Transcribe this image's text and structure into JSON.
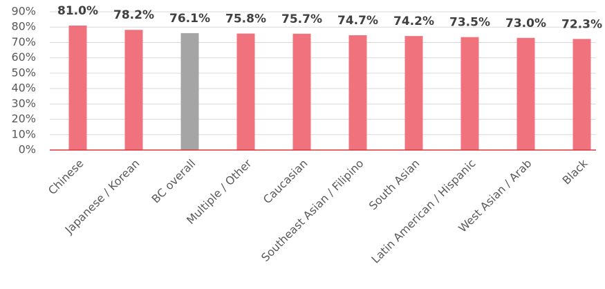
{
  "chart_data": {
    "type": "bar",
    "categories": [
      "Chinese",
      "Japanese / Korean",
      "BC overall",
      "Multiple / Other",
      "Caucasian",
      "Southeast Asian / Filipino",
      "South Asian",
      "Latin American / Hispanic",
      "West Asian / Arab",
      "Black"
    ],
    "values": [
      81.0,
      78.2,
      76.1,
      75.8,
      75.7,
      74.7,
      74.2,
      73.5,
      73.0,
      72.3
    ],
    "value_labels": [
      "81.0%",
      "78.2%",
      "76.1%",
      "75.8%",
      "75.7%",
      "74.7%",
      "74.2%",
      "73.5%",
      "73.0%",
      "72.3%"
    ],
    "colors": [
      "#f0727c",
      "#f0727c",
      "#a5a5a5",
      "#f0727c",
      "#f0727c",
      "#f0727c",
      "#f0727c",
      "#f0727c",
      "#f0727c",
      "#f0727c"
    ],
    "ylim": [
      0,
      90
    ],
    "yticks": [
      {
        "value": 0,
        "label": "0%"
      },
      {
        "value": 10,
        "label": "10%"
      },
      {
        "value": 20,
        "label": "20%"
      },
      {
        "value": 30,
        "label": "30%"
      },
      {
        "value": 40,
        "label": "40%"
      },
      {
        "value": 50,
        "label": "50%"
      },
      {
        "value": 60,
        "label": "60%"
      },
      {
        "value": 70,
        "label": "70%"
      },
      {
        "value": 80,
        "label": "80%"
      },
      {
        "value": 90,
        "label": "90%"
      }
    ],
    "grid": true
  }
}
